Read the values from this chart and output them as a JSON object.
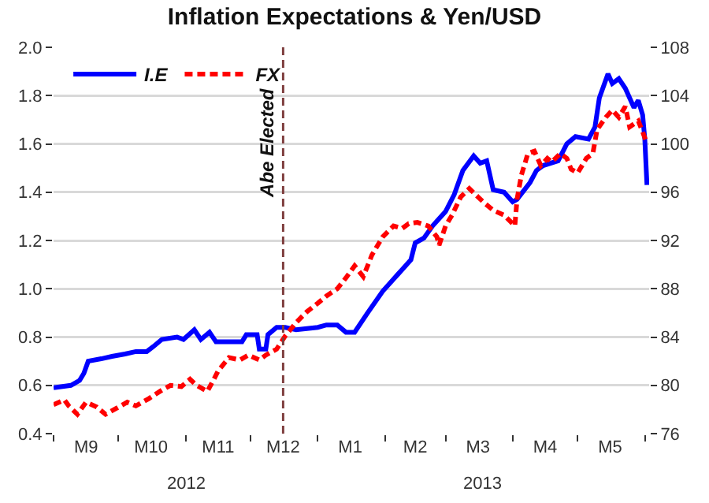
{
  "chart_data": {
    "type": "line",
    "title": "Inflation Expectations & Yen/USD",
    "xlim": [
      "2012-09-01",
      "2013-06-03"
    ],
    "xticks": [
      {
        "value": "2012-09-01",
        "label": null
      },
      {
        "value": "2012-09-16",
        "label": "M9"
      },
      {
        "value": "2012-10-01",
        "label": null
      },
      {
        "value": "2012-10-16",
        "label": "M10"
      },
      {
        "value": "2012-11-01",
        "label": null
      },
      {
        "value": "2012-11-16",
        "label": "M11"
      },
      {
        "value": "2012-12-01",
        "label": null
      },
      {
        "value": "2012-12-16",
        "label": "M12"
      },
      {
        "value": "2013-01-01",
        "label": null
      },
      {
        "value": "2013-01-16",
        "label": "M1"
      },
      {
        "value": "2013-02-01",
        "label": null
      },
      {
        "value": "2013-02-15",
        "label": "M2"
      },
      {
        "value": "2013-03-01",
        "label": null
      },
      {
        "value": "2013-03-16",
        "label": "M3"
      },
      {
        "value": "2013-04-01",
        "label": null
      },
      {
        "value": "2013-04-16",
        "label": "M4"
      },
      {
        "value": "2013-05-01",
        "label": null
      },
      {
        "value": "2013-05-16",
        "label": "M5"
      },
      {
        "value": "2013-06-01",
        "label": null
      }
    ],
    "ylim": [
      0.4,
      2.0
    ],
    "yticks": [
      0.4,
      0.6,
      0.8,
      {
        "value": 1.0,
        "label": "1.0"
      },
      1.2,
      1.4,
      1.6,
      1.8,
      {
        "value": 2.0,
        "label": "2.0"
      }
    ],
    "y2lim": [
      76,
      108
    ],
    "y2ticks": [
      76,
      80,
      84,
      88,
      92,
      96,
      100,
      104,
      108
    ],
    "grid": "y",
    "legend": "top left",
    "marker": "none",
    "annotations": [
      "2012",
      "2013"
    ],
    "ref_lines": [
      {
        "axis": "x",
        "value": "2012-12-16",
        "label": "Abe Elected",
        "color": "#7f3f3f",
        "line_style": "dashed"
      }
    ],
    "series": [
      {
        "name": "I.E",
        "color": "#0000ff",
        "line_style": "solid",
        "x": [
          "2012-09-01",
          "2012-09-09",
          "2012-09-13",
          "2012-09-15",
          "2012-09-17",
          "2012-09-23",
          "2012-09-28",
          "2012-10-04",
          "2012-10-09",
          "2012-10-14",
          "2012-10-17",
          "2012-10-21",
          "2012-10-28",
          "2012-10-31",
          "2012-11-05",
          "2012-11-08",
          "2012-11-12",
          "2012-11-15",
          "2012-11-27",
          "2012-11-29",
          "2012-12-04",
          "2012-12-05",
          "2012-12-08",
          "2012-12-09",
          "2012-12-13",
          "2012-12-17",
          "2012-12-22",
          "2013-01-01",
          "2013-01-05",
          "2013-01-10",
          "2013-01-14",
          "2013-01-18",
          "2013-01-24",
          "2013-01-31",
          "2013-02-05",
          "2013-02-07",
          "2013-02-13",
          "2013-02-15",
          "2013-02-19",
          "2013-02-23",
          "2013-03-01",
          "2013-03-05",
          "2013-03-09",
          "2013-03-14",
          "2013-03-17",
          "2013-03-20",
          "2013-03-23",
          "2013-03-28",
          "2013-04-01",
          "2013-04-03",
          "2013-04-09",
          "2013-04-12",
          "2013-04-15",
          "2013-04-22",
          "2013-04-26",
          "2013-04-30",
          "2013-05-06",
          "2013-05-09",
          "2013-05-11",
          "2013-05-15",
          "2013-05-17",
          "2013-05-20",
          "2013-05-23",
          "2013-05-27",
          "2013-05-29",
          "2013-05-31",
          "2013-06-01",
          "2013-06-02"
        ],
        "values": [
          0.59,
          0.6,
          0.62,
          0.65,
          0.7,
          0.71,
          0.72,
          0.73,
          0.74,
          0.74,
          0.76,
          0.79,
          0.8,
          0.79,
          0.83,
          0.79,
          0.82,
          0.78,
          0.78,
          0.81,
          0.81,
          0.75,
          0.75,
          0.81,
          0.84,
          0.84,
          0.83,
          0.84,
          0.85,
          0.85,
          0.82,
          0.82,
          0.9,
          0.99,
          1.04,
          1.06,
          1.12,
          1.19,
          1.21,
          1.26,
          1.32,
          1.39,
          1.49,
          1.55,
          1.52,
          1.53,
          1.41,
          1.4,
          1.36,
          1.37,
          1.44,
          1.49,
          1.51,
          1.53,
          1.6,
          1.63,
          1.62,
          1.67,
          1.79,
          1.89,
          1.85,
          1.87,
          1.83,
          1.75,
          1.78,
          1.72,
          1.62,
          1.43
        ]
      },
      {
        "name": "FX",
        "color": "#ff0000",
        "line_style": "dashed",
        "axis": "y2",
        "x": [
          "2012-09-01",
          "2012-09-06",
          "2012-09-08",
          "2012-09-12",
          "2012-09-16",
          "2012-09-21",
          "2012-09-25",
          "2012-09-30",
          "2012-10-05",
          "2012-10-09",
          "2012-10-15",
          "2012-10-21",
          "2012-10-25",
          "2012-10-30",
          "2012-11-03",
          "2012-11-06",
          "2012-11-11",
          "2012-11-14",
          "2012-11-16",
          "2012-11-21",
          "2012-11-26",
          "2012-11-30",
          "2012-12-05",
          "2012-12-08",
          "2012-12-13",
          "2012-12-17",
          "2012-12-22",
          "2012-12-27",
          "2013-01-01",
          "2013-01-05",
          "2013-01-10",
          "2013-01-14",
          "2013-01-18",
          "2013-01-22",
          "2013-01-26",
          "2013-01-31",
          "2013-02-05",
          "2013-02-09",
          "2013-02-12",
          "2013-02-16",
          "2013-02-21",
          "2013-02-25",
          "2013-02-26",
          "2013-03-01",
          "2013-03-04",
          "2013-03-08",
          "2013-03-12",
          "2013-03-16",
          "2013-03-19",
          "2013-03-23",
          "2013-03-28",
          "2013-04-02",
          "2013-04-03",
          "2013-04-05",
          "2013-04-08",
          "2013-04-11",
          "2013-04-14",
          "2013-04-17",
          "2013-04-19",
          "2013-04-23",
          "2013-04-26",
          "2013-04-28",
          "2013-05-01",
          "2013-05-05",
          "2013-05-08",
          "2013-05-10",
          "2013-05-14",
          "2013-05-17",
          "2013-05-20",
          "2013-05-23",
          "2013-05-25",
          "2013-05-29",
          "2013-05-31",
          "2013-06-01",
          "2013-06-02"
        ],
        "values": [
          78.4,
          78.8,
          78.3,
          77.6,
          78.6,
          78.2,
          77.6,
          78.1,
          78.6,
          78.3,
          78.9,
          79.6,
          80.0,
          79.9,
          80.5,
          80.0,
          79.5,
          80.5,
          81.2,
          82.3,
          82.1,
          82.5,
          82.1,
          82.5,
          83.0,
          84.1,
          85.2,
          86.1,
          86.8,
          87.4,
          88.0,
          88.9,
          89.9,
          89.0,
          90.8,
          92.3,
          93.2,
          93.0,
          93.4,
          93.5,
          93.2,
          92.3,
          91.6,
          93.2,
          94.1,
          95.6,
          96.3,
          95.6,
          95.1,
          94.5,
          94.1,
          93.2,
          95.4,
          97.4,
          99.2,
          99.4,
          98.2,
          98.8,
          98.5,
          99.2,
          98.8,
          97.9,
          97.6,
          98.8,
          99.2,
          101.2,
          102.2,
          102.8,
          102.2,
          103.1,
          101.4,
          101.9,
          101.0,
          100.5,
          100.0
        ]
      }
    ]
  }
}
